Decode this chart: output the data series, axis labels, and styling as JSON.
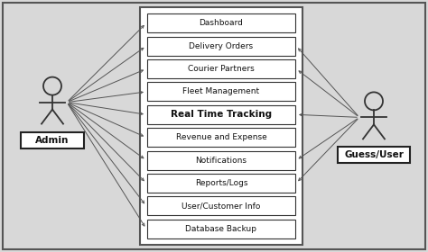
{
  "bg_color": "#d8d8d8",
  "inner_bg": "#ffffff",
  "box_color": "#ffffff",
  "box_edge": "#333333",
  "line_color": "#555555",
  "use_cases": [
    "Dashboard",
    "Delivery Orders",
    "Courier Partners",
    "Fleet Management",
    "Real Time Tracking",
    "Revenue and Expense",
    "Notifications",
    "Reports/Logs",
    "User/Customer Info",
    "Database Backup"
  ],
  "bold_case": "Real Time Tracking",
  "admin_label": "Admin",
  "user_label": "Guess/User",
  "admin_cases": [
    0,
    1,
    2,
    3,
    4,
    5,
    6,
    7,
    8,
    9
  ],
  "user_cases": [
    1,
    2,
    4,
    6,
    7
  ],
  "fig_width": 4.74,
  "fig_height": 2.8,
  "dpi": 100
}
